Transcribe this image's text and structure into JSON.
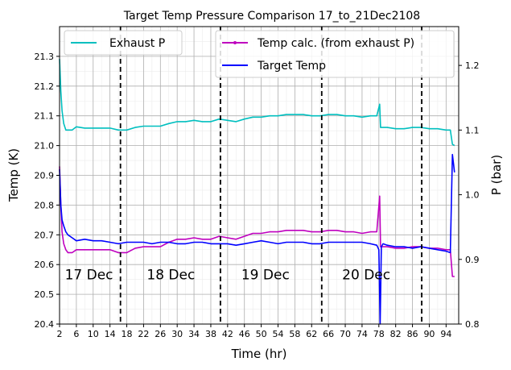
{
  "chart_data": {
    "type": "line",
    "title": "Target Temp Pressure Comparison 17_to_21Dec2108",
    "xlabel": "Time (hr)",
    "ylabel_left": "Temp (K)",
    "ylabel_right": "P (bar)",
    "xlim": [
      2,
      97
    ],
    "ylim_left": [
      20.4,
      21.4
    ],
    "ylim_right": [
      0.8,
      1.26
    ],
    "x_ticks": [
      2,
      6,
      10,
      14,
      18,
      22,
      26,
      30,
      34,
      38,
      42,
      46,
      50,
      54,
      58,
      62,
      66,
      70,
      74,
      78,
      82,
      86,
      90,
      94
    ],
    "y_ticks_left": [
      20.4,
      20.5,
      20.6,
      20.7,
      20.8,
      20.9,
      21.0,
      21.1,
      21.2,
      21.3
    ],
    "y_ticks_right": [
      0.8,
      0.9,
      1.0,
      1.1,
      1.2
    ],
    "grid": true,
    "day_boundaries": [
      16.5,
      40.3,
      64.4,
      88.2
    ],
    "day_labels": [
      {
        "text": "17 Dec",
        "x": 9
      },
      {
        "text": "18 Dec",
        "x": 28.5
      },
      {
        "text": "19 Dec",
        "x": 51
      },
      {
        "text": "20 Dec",
        "x": 75
      }
    ],
    "legend_left": [
      {
        "name": "Exhaust P",
        "color": "#00bfbf"
      }
    ],
    "legend_right": [
      {
        "name": "Temp calc. (from exhaust P)",
        "color": "#bf00bf",
        "marker": true
      },
      {
        "name": "Target Temp",
        "color": "#0000ff"
      }
    ],
    "series": [
      {
        "name": "Exhaust P",
        "axis": "right",
        "color": "#00bfbf",
        "x": [
          2,
          2.3,
          2.6,
          3,
          3.5,
          4,
          5,
          6,
          8,
          10,
          12,
          14,
          16,
          18,
          20,
          22,
          24,
          26,
          28,
          30,
          32,
          34,
          36,
          38,
          40,
          42,
          44,
          46,
          48,
          50,
          52,
          54,
          56,
          58,
          60,
          62,
          64,
          66,
          68,
          70,
          72,
          74,
          76,
          77.5,
          78.2,
          78.4,
          79,
          80,
          82,
          84,
          86,
          88,
          90,
          92,
          94,
          95,
          95.5,
          96
        ],
        "y": [
          1.21,
          1.16,
          1.13,
          1.11,
          1.1,
          1.1,
          1.1,
          1.105,
          1.103,
          1.103,
          1.103,
          1.103,
          1.1,
          1.1,
          1.104,
          1.106,
          1.106,
          1.106,
          1.11,
          1.113,
          1.113,
          1.115,
          1.113,
          1.113,
          1.117,
          1.115,
          1.113,
          1.117,
          1.12,
          1.12,
          1.122,
          1.122,
          1.124,
          1.124,
          1.124,
          1.122,
          1.122,
          1.124,
          1.124,
          1.122,
          1.122,
          1.12,
          1.122,
          1.122,
          1.14,
          1.104,
          1.104,
          1.104,
          1.102,
          1.102,
          1.104,
          1.104,
          1.102,
          1.102,
          1.1,
          1.1,
          1.078,
          1.076
        ]
      },
      {
        "name": "Temp calc. (from exhaust P)",
        "axis": "left",
        "color": "#bf00bf",
        "x": [
          2,
          2.3,
          2.6,
          3,
          3.5,
          4,
          5,
          6,
          8,
          10,
          12,
          14,
          16,
          18,
          20,
          22,
          24,
          26,
          28,
          30,
          32,
          34,
          36,
          38,
          40,
          42,
          44,
          46,
          48,
          50,
          52,
          54,
          56,
          58,
          60,
          62,
          64,
          66,
          68,
          70,
          72,
          74,
          76,
          77.5,
          78.2,
          78.4,
          79,
          80,
          82,
          84,
          86,
          88,
          90,
          92,
          94,
          95,
          95.5,
          96
        ],
        "y": [
          20.93,
          20.8,
          20.71,
          20.67,
          20.65,
          20.64,
          20.64,
          20.65,
          20.65,
          20.65,
          20.65,
          20.65,
          20.64,
          20.64,
          20.655,
          20.66,
          20.66,
          20.66,
          20.675,
          20.685,
          20.685,
          20.69,
          20.685,
          20.685,
          20.695,
          20.69,
          20.685,
          20.695,
          20.705,
          20.705,
          20.71,
          20.71,
          20.715,
          20.715,
          20.715,
          20.71,
          20.71,
          20.715,
          20.715,
          20.71,
          20.71,
          20.705,
          20.71,
          20.71,
          20.83,
          20.66,
          20.66,
          20.66,
          20.655,
          20.655,
          20.66,
          20.66,
          20.655,
          20.655,
          20.65,
          20.65,
          20.56,
          20.56
        ]
      },
      {
        "name": "Target Temp",
        "axis": "left",
        "color": "#0000ff",
        "x": [
          2,
          2.3,
          2.6,
          3,
          3.5,
          4,
          5,
          6,
          8,
          10,
          12,
          14,
          16,
          18,
          20,
          22,
          24,
          26,
          28,
          30,
          32,
          34,
          36,
          38,
          40,
          42,
          44,
          46,
          48,
          50,
          52,
          54,
          56,
          58,
          60,
          62,
          64,
          66,
          68,
          70,
          72,
          74,
          76,
          77.5,
          78,
          78.3,
          78.6,
          79,
          80,
          82,
          84,
          86,
          88,
          90,
          92,
          94,
          95,
          95.5,
          96
        ],
        "y": [
          20.92,
          20.8,
          20.75,
          20.73,
          20.71,
          20.7,
          20.69,
          20.68,
          20.685,
          20.68,
          20.68,
          20.675,
          20.67,
          20.675,
          20.675,
          20.675,
          20.67,
          20.675,
          20.675,
          20.67,
          20.67,
          20.675,
          20.675,
          20.67,
          20.67,
          20.67,
          20.665,
          20.67,
          20.675,
          20.68,
          20.675,
          20.67,
          20.675,
          20.675,
          20.675,
          20.67,
          20.67,
          20.675,
          20.675,
          20.675,
          20.675,
          20.675,
          20.67,
          20.665,
          20.65,
          20.4,
          20.66,
          20.67,
          20.665,
          20.66,
          20.66,
          20.655,
          20.66,
          20.655,
          20.65,
          20.645,
          20.64,
          20.97,
          20.91
        ]
      }
    ]
  }
}
